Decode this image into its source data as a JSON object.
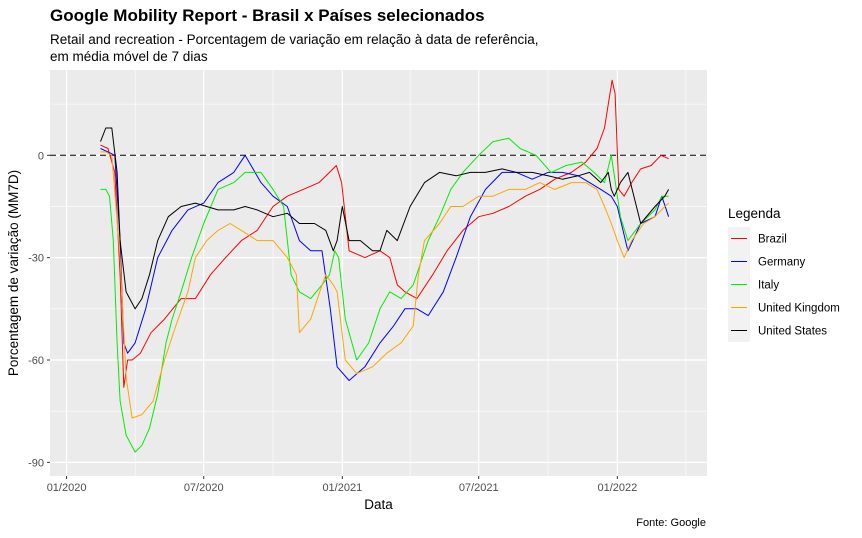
{
  "chart_data": {
    "type": "line",
    "title": "Google Mobility Report - Brasil x Países selecionados",
    "subtitle": "Retail and recreation - Porcentagem de variação em relação à data de referência, em média móvel de 7 dias",
    "subtitle_line1": "Retail and recreation - Porcentagem de variação em relação à data de referência,",
    "subtitle_line2": "em média móvel de 7 dias",
    "xlabel": "Data",
    "ylabel": "Porcentagem de variação (MM7D)",
    "caption": "Fonte: Google",
    "x_ticks": [
      "01/2020",
      "07/2020",
      "01/2021",
      "07/2021",
      "01/2022"
    ],
    "y_ticks": [
      0,
      -30,
      -60,
      -90
    ],
    "y_tick_labels": [
      "0",
      "-30",
      "-60",
      "-90"
    ],
    "ylim": [
      -94,
      25
    ],
    "xlim": [
      "2019-12-10",
      "2022-04-30"
    ],
    "reference_line": 0,
    "grid": true,
    "legend_title": "Legenda",
    "legend_position": "right",
    "series": [
      {
        "name": "Brazil",
        "color": "#ff0000",
        "x": [
          "2020-02-15",
          "2020-02-25",
          "2020-03-05",
          "2020-03-12",
          "2020-03-17",
          "2020-03-22",
          "2020-03-28",
          "2020-04-08",
          "2020-04-22",
          "2020-05-10",
          "2020-06-01",
          "2020-06-20",
          "2020-07-10",
          "2020-07-30",
          "2020-08-20",
          "2020-09-10",
          "2020-10-01",
          "2020-10-20",
          "2020-11-10",
          "2020-12-01",
          "2020-12-15",
          "2020-12-24",
          "2020-12-31",
          "2021-01-10",
          "2021-01-31",
          "2021-02-20",
          "2021-03-05",
          "2021-03-15",
          "2021-03-25",
          "2021-04-10",
          "2021-05-01",
          "2021-05-20",
          "2021-06-10",
          "2021-07-01",
          "2021-07-20",
          "2021-08-10",
          "2021-09-01",
          "2021-09-20",
          "2021-10-10",
          "2021-11-01",
          "2021-11-20",
          "2021-12-05",
          "2021-12-15",
          "2021-12-20",
          "2021-12-25",
          "2021-12-29",
          "2022-01-03",
          "2022-01-10",
          "2022-01-20",
          "2022-02-01",
          "2022-02-15",
          "2022-02-28",
          "2022-03-10"
        ],
        "y": [
          3,
          2,
          -5,
          -35,
          -68,
          -60,
          -60,
          -58,
          -52,
          -48,
          -42,
          -42,
          -35,
          -30,
          -25,
          -22,
          -15,
          -12,
          -10,
          -8,
          -5,
          -3,
          -8,
          -28,
          -30,
          -28,
          -30,
          -38,
          -40,
          -42,
          -35,
          -28,
          -22,
          -18,
          -17,
          -15,
          -12,
          -10,
          -7,
          -5,
          -2,
          2,
          8,
          15,
          22,
          18,
          -10,
          -12,
          -8,
          -4,
          -3,
          0,
          -1
        ]
      },
      {
        "name": "Germany",
        "color": "#0000ff",
        "x": [
          "2020-02-15",
          "2020-02-25",
          "2020-03-05",
          "2020-03-12",
          "2020-03-17",
          "2020-03-22",
          "2020-04-01",
          "2020-04-15",
          "2020-05-01",
          "2020-05-20",
          "2020-06-10",
          "2020-07-01",
          "2020-07-20",
          "2020-08-10",
          "2020-08-25",
          "2020-09-15",
          "2020-10-01",
          "2020-10-20",
          "2020-11-05",
          "2020-11-20",
          "2020-12-05",
          "2020-12-16",
          "2020-12-25",
          "2021-01-10",
          "2021-01-31",
          "2021-02-20",
          "2021-03-10",
          "2021-03-25",
          "2021-04-10",
          "2021-04-25",
          "2021-05-15",
          "2021-06-01",
          "2021-06-20",
          "2021-07-10",
          "2021-08-01",
          "2021-08-20",
          "2021-09-10",
          "2021-10-01",
          "2021-10-20",
          "2021-11-10",
          "2021-11-25",
          "2021-12-10",
          "2021-12-24",
          "2022-01-01",
          "2022-01-15",
          "2022-02-01",
          "2022-02-20",
          "2022-03-01",
          "2022-03-10"
        ],
        "y": [
          2,
          1,
          0,
          -25,
          -55,
          -58,
          -55,
          -45,
          -30,
          -22,
          -16,
          -14,
          -8,
          -5,
          0,
          -8,
          -12,
          -15,
          -25,
          -28,
          -28,
          -45,
          -62,
          -66,
          -62,
          -55,
          -50,
          -45,
          -45,
          -47,
          -40,
          -30,
          -18,
          -10,
          -5,
          -5,
          -7,
          -5,
          -5,
          -6,
          -8,
          -10,
          -12,
          -15,
          -28,
          -20,
          -18,
          -12,
          -18
        ]
      },
      {
        "name": "Italy",
        "color": "#00ee00",
        "x": [
          "2020-02-15",
          "2020-02-22",
          "2020-02-27",
          "2020-03-03",
          "2020-03-08",
          "2020-03-12",
          "2020-03-20",
          "2020-04-01",
          "2020-04-10",
          "2020-04-20",
          "2020-05-01",
          "2020-05-12",
          "2020-05-20",
          "2020-06-01",
          "2020-06-15",
          "2020-07-01",
          "2020-07-20",
          "2020-08-10",
          "2020-08-25",
          "2020-09-15",
          "2020-10-01",
          "2020-10-15",
          "2020-10-25",
          "2020-11-05",
          "2020-11-20",
          "2020-12-05",
          "2020-12-15",
          "2020-12-22",
          "2020-12-27",
          "2021-01-05",
          "2021-01-20",
          "2021-02-05",
          "2021-02-20",
          "2021-03-05",
          "2021-03-20",
          "2021-04-05",
          "2021-04-25",
          "2021-05-10",
          "2021-05-25",
          "2021-06-10",
          "2021-07-01",
          "2021-07-20",
          "2021-08-10",
          "2021-08-25",
          "2021-09-15",
          "2021-10-05",
          "2021-10-25",
          "2021-11-15",
          "2021-12-01",
          "2021-12-15",
          "2021-12-24",
          "2022-01-05",
          "2022-01-15",
          "2022-02-01",
          "2022-02-20",
          "2022-03-01",
          "2022-03-10"
        ],
        "y": [
          -10,
          -10,
          -12,
          -25,
          -55,
          -72,
          -82,
          -87,
          -85,
          -80,
          -70,
          -55,
          -48,
          -40,
          -30,
          -20,
          -10,
          -8,
          -5,
          -5,
          -10,
          -15,
          -35,
          -40,
          -42,
          -38,
          -35,
          -28,
          -30,
          -48,
          -60,
          -55,
          -45,
          -40,
          -42,
          -38,
          -25,
          -18,
          -10,
          -5,
          0,
          4,
          5,
          2,
          0,
          -5,
          -3,
          -2,
          -5,
          -8,
          0,
          -18,
          -25,
          -20,
          -16,
          -12,
          -12
        ]
      },
      {
        "name": "United Kingdom",
        "color": "#ffa500",
        "x": [
          "2020-02-15",
          "2020-02-22",
          "2020-03-01",
          "2020-03-12",
          "2020-03-20",
          "2020-03-28",
          "2020-04-10",
          "2020-04-25",
          "2020-05-10",
          "2020-05-25",
          "2020-06-10",
          "2020-06-20",
          "2020-07-05",
          "2020-07-20",
          "2020-08-05",
          "2020-08-20",
          "2020-09-10",
          "2020-10-01",
          "2020-10-20",
          "2020-11-01",
          "2020-11-05",
          "2020-11-20",
          "2020-12-02",
          "2020-12-10",
          "2020-12-20",
          "2020-12-25",
          "2021-01-05",
          "2021-01-20",
          "2021-02-10",
          "2021-03-01",
          "2021-03-20",
          "2021-04-05",
          "2021-04-12",
          "2021-04-20",
          "2021-05-10",
          "2021-05-25",
          "2021-06-10",
          "2021-07-01",
          "2021-07-20",
          "2021-08-10",
          "2021-09-01",
          "2021-09-20",
          "2021-10-10",
          "2021-11-01",
          "2021-11-20",
          "2021-12-05",
          "2021-12-15",
          "2021-12-24",
          "2022-01-01",
          "2022-01-10",
          "2022-01-20",
          "2022-02-05",
          "2022-02-20",
          "2022-03-05",
          "2022-03-10"
        ],
        "y": [
          1,
          1,
          0,
          -30,
          -65,
          -77,
          -76,
          -72,
          -60,
          -50,
          -40,
          -30,
          -25,
          -22,
          -20,
          -22,
          -25,
          -25,
          -30,
          -35,
          -52,
          -48,
          -40,
          -35,
          -38,
          -40,
          -60,
          -64,
          -62,
          -58,
          -55,
          -50,
          -35,
          -25,
          -20,
          -15,
          -15,
          -12,
          -12,
          -10,
          -10,
          -8,
          -10,
          -8,
          -8,
          -10,
          -15,
          -20,
          -25,
          -30,
          -25,
          -20,
          -18,
          -15,
          -14
        ]
      },
      {
        "name": "United States",
        "color": "#000000",
        "x": [
          "2020-02-15",
          "2020-02-22",
          "2020-03-01",
          "2020-03-08",
          "2020-03-12",
          "2020-03-20",
          "2020-04-01",
          "2020-04-10",
          "2020-04-20",
          "2020-05-01",
          "2020-05-15",
          "2020-06-01",
          "2020-06-20",
          "2020-07-05",
          "2020-07-20",
          "2020-08-10",
          "2020-08-25",
          "2020-09-10",
          "2020-10-01",
          "2020-10-20",
          "2020-11-05",
          "2020-11-25",
          "2020-12-10",
          "2020-12-20",
          "2020-12-25",
          "2021-01-01",
          "2021-01-10",
          "2021-01-25",
          "2021-02-10",
          "2021-02-20",
          "2021-03-01",
          "2021-03-15",
          "2021-04-01",
          "2021-04-20",
          "2021-05-10",
          "2021-06-01",
          "2021-06-20",
          "2021-07-10",
          "2021-08-01",
          "2021-08-20",
          "2021-09-10",
          "2021-10-01",
          "2021-10-20",
          "2021-11-10",
          "2021-11-25",
          "2021-12-10",
          "2021-12-20",
          "2021-12-24",
          "2021-12-28",
          "2022-01-05",
          "2022-01-15",
          "2022-02-01",
          "2022-02-20",
          "2022-03-05",
          "2022-03-10"
        ],
        "y": [
          4,
          8,
          8,
          -5,
          -25,
          -40,
          -45,
          -42,
          -35,
          -25,
          -18,
          -15,
          -14,
          -15,
          -16,
          -16,
          -15,
          -16,
          -18,
          -17,
          -20,
          -20,
          -22,
          -28,
          -25,
          -15,
          -25,
          -25,
          -28,
          -28,
          -22,
          -25,
          -15,
          -8,
          -5,
          -6,
          -5,
          -5,
          -4,
          -5,
          -5,
          -6,
          -7,
          -6,
          -5,
          -8,
          -5,
          -10,
          -12,
          -8,
          -5,
          -20,
          -15,
          -12,
          -10
        ]
      }
    ]
  }
}
